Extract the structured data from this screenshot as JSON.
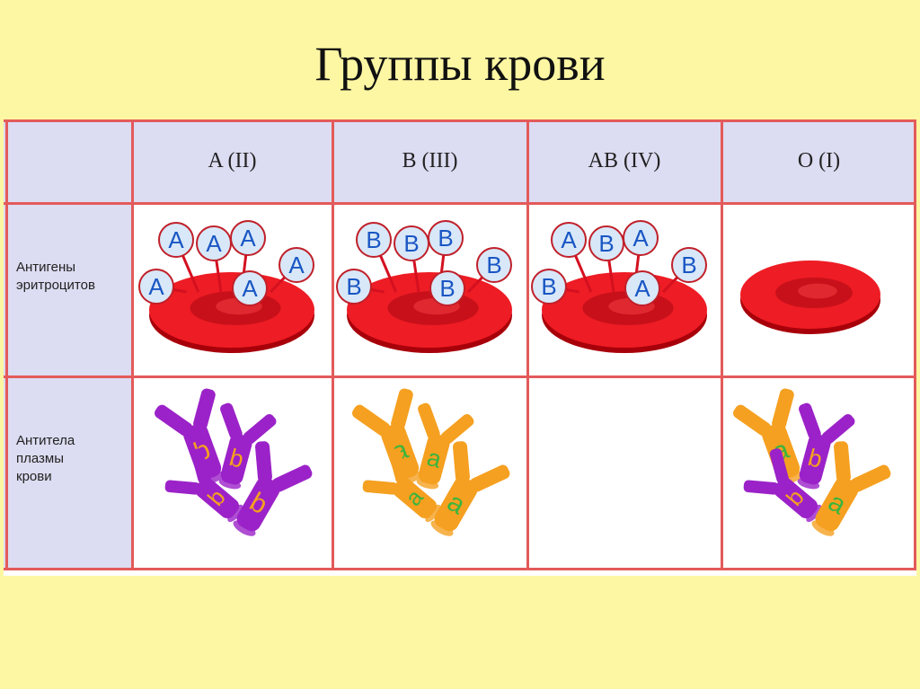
{
  "title": "Группы крови",
  "columns": [
    "A (II)",
    "B (III)",
    "AB (IV)",
    "O (I)"
  ],
  "rows": [
    {
      "label_lines": [
        "Антигены",
        "эритроцитов"
      ]
    },
    {
      "label_lines": [
        "Антитела",
        "плазмы",
        "крови"
      ]
    }
  ],
  "antigens": {
    "A": [
      "A",
      "A",
      "A",
      "A",
      "A",
      "A"
    ],
    "B": [
      "B",
      "B",
      "B",
      "B",
      "B",
      "B"
    ],
    "AB": [
      "A",
      "B",
      "A",
      "B",
      "B",
      "A"
    ],
    "O": []
  },
  "antibodies": {
    "A": [
      "b",
      "b",
      "b",
      "b"
    ],
    "B": [
      "a",
      "a",
      "a",
      "a"
    ],
    "AB": [],
    "O": [
      "a",
      "b",
      "b",
      "a"
    ]
  },
  "colors": {
    "background": "#fdf6a3",
    "header_bg": "#dcdcf2",
    "grid": "#e35a5a",
    "cell": "#ee1c24",
    "antigen_fill": "#d8e8f8",
    "antigen_text": "#1a56c4",
    "anti_b": "#9b22c8",
    "anti_a": "#f5a020",
    "letter_b": "#f5a020",
    "letter_a": "#3cb43c"
  }
}
